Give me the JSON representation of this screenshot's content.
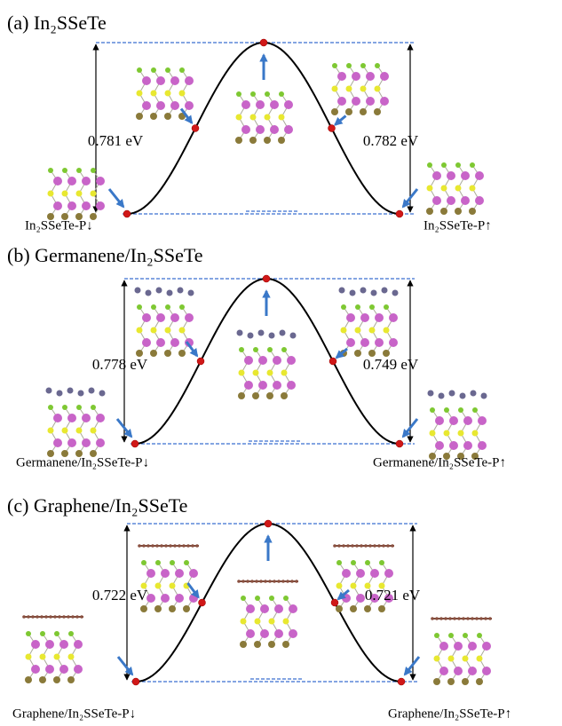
{
  "panels": [
    {
      "title": "(a) In₂SSeTe",
      "barriers": [
        "0.781 eV",
        "0.782 eV"
      ],
      "states": [
        "In₂SSeTe-P↓",
        "In₂SSeTe-P↑"
      ]
    },
    {
      "title": "(b) Germanene/In₂SSeTe",
      "barriers": [
        "0.778 eV",
        "0.749 eV"
      ],
      "states": [
        "Germanene/In₂SSeTe-P↓",
        "Germanene/In₂SSeTe-P↑"
      ]
    },
    {
      "title": "(c) Graphene/In₂SSeTe",
      "barriers": [
        "0.722 eV",
        "0.721 eV"
      ],
      "states": [
        "Graphene/In₂SSeTe-P↓",
        "Graphene/In₂SSeTe-P↑"
      ]
    }
  ]
}
